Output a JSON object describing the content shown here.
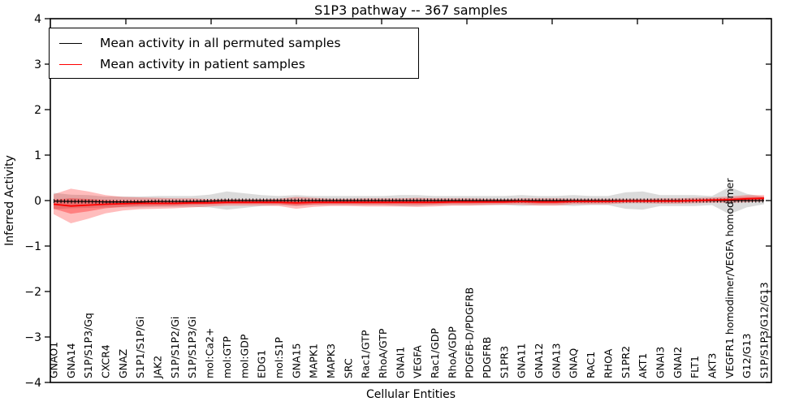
{
  "chart_data": {
    "type": "line",
    "title": "S1P3 pathway -- 367 samples",
    "xlabel": "Cellular Entities",
    "ylabel": "Inferred Activity",
    "ylim": [
      -4,
      4
    ],
    "yticks": [
      4,
      3,
      2,
      1,
      0,
      -1,
      -2,
      -3,
      -4
    ],
    "grid": false,
    "legend_position": "upper left",
    "background_color": "#ffffff",
    "frame_color": "#000000",
    "categories": [
      "GNAO1",
      "GNA14",
      "S1P/S1P3/Gq",
      "CXCR4",
      "GNAZ",
      "S1P1/S1P/Gi",
      "JAK2",
      "S1P/S1P2/Gi",
      "S1P/S1P3/Gi",
      "mol:Ca2+",
      "mol:GTP",
      "mol:GDP",
      "EDG1",
      "mol:S1P",
      "GNA15",
      "MAPK1",
      "MAPK3",
      "SRC",
      "Rac1/GTP",
      "RhoA/GTP",
      "GNAI1",
      "VEGFA",
      "Rac1/GDP",
      "RhoA/GDP",
      "PDGFB-D/PDGFRB",
      "PDGFRB",
      "S1PR3",
      "GNA11",
      "GNA12",
      "GNA13",
      "GNAQ",
      "RAC1",
      "RHOA",
      "S1PR2",
      "AKT1",
      "GNAI3",
      "GNAI2",
      "FLT1",
      "AKT3",
      "VEGFR1 homodimer/VEGFA homodimer",
      "G12/G13",
      "S1P/S1P3/G12/G13"
    ],
    "series": [
      {
        "name": "Mean activity in all permuted samples",
        "color": "#000000",
        "band_color": "#000000",
        "values": [
          -0.01,
          -0.02,
          -0.02,
          -0.03,
          -0.03,
          -0.03,
          -0.02,
          -0.02,
          -0.02,
          -0.01,
          0,
          0,
          0,
          0,
          0,
          0,
          0,
          0,
          0,
          0,
          0,
          0,
          0,
          0,
          0,
          0,
          0,
          0,
          0,
          0,
          0,
          0,
          0,
          0,
          0,
          0,
          0,
          0,
          0,
          0,
          0,
          0
        ],
        "std": [
          0.18,
          0.15,
          0.14,
          0.12,
          0.12,
          0.12,
          0.12,
          0.12,
          0.12,
          0.14,
          0.2,
          0.16,
          0.12,
          0.1,
          0.12,
          0.1,
          0.1,
          0.1,
          0.1,
          0.1,
          0.12,
          0.12,
          0.1,
          0.1,
          0.1,
          0.1,
          0.1,
          0.12,
          0.1,
          0.1,
          0.12,
          0.1,
          0.1,
          0.18,
          0.2,
          0.12,
          0.12,
          0.12,
          0.1,
          0.3,
          0.15,
          0.08
        ]
      },
      {
        "name": "Mean activity in patient samples",
        "color": "#ff0000",
        "band_color": "#ff0000",
        "values": [
          -0.08,
          -0.12,
          -0.1,
          -0.08,
          -0.07,
          -0.06,
          -0.06,
          -0.06,
          -0.05,
          -0.05,
          -0.04,
          -0.04,
          -0.04,
          -0.04,
          -0.05,
          -0.04,
          -0.04,
          -0.04,
          -0.04,
          -0.04,
          -0.04,
          -0.04,
          -0.04,
          -0.03,
          -0.03,
          -0.03,
          -0.03,
          -0.02,
          -0.03,
          -0.03,
          -0.02,
          -0.02,
          -0.02,
          -0.01,
          -0.01,
          -0.01,
          -0.01,
          0.0,
          0.01,
          0.02,
          0.04,
          0.05
        ],
        "std": [
          0.22,
          0.38,
          0.3,
          0.2,
          0.15,
          0.13,
          0.12,
          0.11,
          0.1,
          0.08,
          0.07,
          0.07,
          0.07,
          0.08,
          0.13,
          0.1,
          0.08,
          0.08,
          0.09,
          0.09,
          0.09,
          0.1,
          0.09,
          0.08,
          0.08,
          0.07,
          0.06,
          0.07,
          0.08,
          0.08,
          0.06,
          0.06,
          0.06,
          0.05,
          0.05,
          0.06,
          0.06,
          0.06,
          0.06,
          0.07,
          0.08,
          0.07
        ]
      }
    ]
  }
}
